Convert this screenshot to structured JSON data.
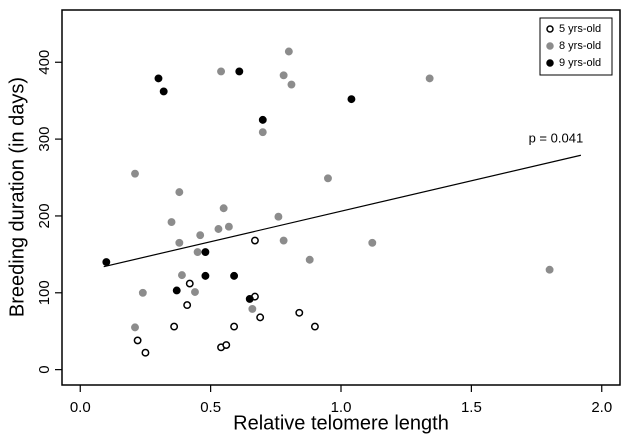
{
  "chart_data": {
    "type": "scatter",
    "x_label": "Relative telomere length",
    "y_label": "Breeding duration (in days)",
    "annotation": "p = 0.041",
    "xlim": [
      -0.07,
      2.07
    ],
    "ylim": [
      -20,
      468
    ],
    "xticks": [
      {
        "value": 0,
        "label": "0.0"
      },
      {
        "value": 0.5,
        "label": "0.5"
      },
      {
        "value": 1,
        "label": "1.0"
      },
      {
        "value": 1.5,
        "label": "1.5"
      },
      {
        "value": 2,
        "label": "2.0"
      }
    ],
    "yticks": [
      0,
      100,
      200,
      300,
      400
    ],
    "grid": false,
    "legend": "top-right",
    "series": [
      {
        "name": "5 yrs-old",
        "color": "#000000",
        "filled": false,
        "x": [
          0.67,
          0.67,
          0.42,
          0.41,
          0.36,
          0.59,
          0.69,
          0.84,
          0.9,
          0.54,
          0.56,
          0.22,
          0.25
        ],
        "values": [
          168,
          95,
          112,
          84,
          56,
          56,
          68,
          74,
          56,
          29,
          32,
          38,
          22
        ]
      },
      {
        "name": "8 yrs-old",
        "color": "#8c8c8c",
        "filled": true,
        "x": [
          0.8,
          0.54,
          0.78,
          0.81,
          1.34,
          1.8,
          0.7,
          0.21,
          0.95,
          0.38,
          0.55,
          0.76,
          0.35,
          0.57,
          0.53,
          0.46,
          1.12,
          0.78,
          0.38,
          0.45,
          0.39,
          0.88,
          0.44,
          0.24,
          0.21,
          0.66
        ],
        "values": [
          414,
          388,
          383,
          371,
          379,
          130,
          309,
          255,
          249,
          231,
          210,
          199,
          192,
          186,
          183,
          175,
          165,
          168,
          165,
          153,
          123,
          143,
          101,
          100,
          55,
          79
        ]
      },
      {
        "name": "9 yrs-old",
        "color": "#000000",
        "filled": true,
        "x": [
          0.3,
          0.32,
          0.61,
          0.7,
          1.04,
          0.48,
          0.1,
          0.37,
          0.48,
          0.59,
          0.65
        ],
        "values": [
          379,
          362,
          388,
          325,
          352,
          153,
          140,
          103,
          122,
          122,
          92
        ]
      }
    ],
    "fit_line": {
      "x": [
        0.09,
        1.92
      ],
      "values": [
        134,
        279
      ]
    }
  }
}
